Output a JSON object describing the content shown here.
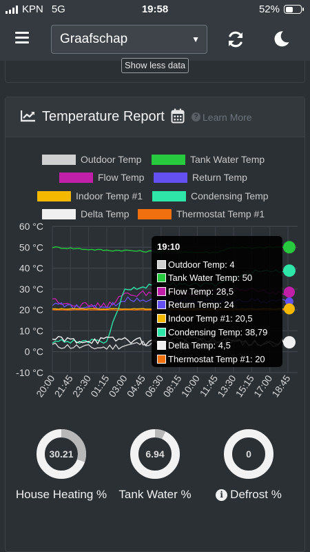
{
  "status_bar": {
    "carrier": "KPN",
    "network": "5G",
    "time": "19:58",
    "battery": "52%",
    "battery_level": 0.52
  },
  "navbar": {
    "menu_icon": "hamburger-icon",
    "location_select": {
      "value": "Graafschap"
    },
    "refresh_icon": "refresh-icon",
    "theme_icon": "moon-icon"
  },
  "show_less_label": "Show less data",
  "report": {
    "title": "Temperature Report",
    "learn_more": "Learn More",
    "icons": [
      "chart-line-icon",
      "calendar-icon",
      "question-circle-icon"
    ]
  },
  "colors": {
    "outdoor": "#d0d0d0",
    "tank_water": "#27c93f",
    "flow": "#c020a8",
    "return": "#6450f0",
    "indoor": "#f5b800",
    "condensing": "#2ee6a8",
    "delta": "#f0f0f0",
    "thermostat": "#f07010"
  },
  "chart_data": {
    "type": "line",
    "title": "",
    "xlabel": "",
    "ylabel": "",
    "ylim": [
      -10,
      60
    ],
    "yticks": [
      "60 °C",
      "50 °C",
      "40 °C",
      "30 °C",
      "20 °C",
      "10 °C",
      "0 °C",
      "-10 °C"
    ],
    "x": [
      "20:00",
      "21:45",
      "23:30",
      "01:15",
      "03:00",
      "04:45",
      "06:30",
      "08:15",
      "10:00",
      "11:45",
      "13:30",
      "15:15",
      "17:00",
      "18:45"
    ],
    "legend_position": "top",
    "grid": true,
    "series": [
      {
        "name": "Outdoor Temp",
        "values": [
          3,
          2.5,
          2,
          2,
          3,
          4,
          5,
          6,
          6,
          5,
          5,
          4,
          4,
          4
        ]
      },
      {
        "name": "Tank Water Temp",
        "values": [
          50,
          49.5,
          49,
          48.5,
          48.5,
          48,
          48,
          48,
          47.5,
          47.5,
          50,
          49.5,
          50,
          50
        ]
      },
      {
        "name": "Flow Temp",
        "values": [
          25,
          23,
          22,
          22,
          27,
          28,
          29,
          28,
          28,
          28,
          29,
          30,
          28.5,
          28.5
        ]
      },
      {
        "name": "Return Temp",
        "values": [
          23,
          21.5,
          21,
          21,
          25,
          25,
          25,
          24,
          24,
          24,
          24,
          25,
          24,
          24
        ]
      },
      {
        "name": "Indoor Temp #1",
        "values": [
          20.5,
          20.5,
          20.5,
          20.5,
          20.5,
          20.5,
          20.5,
          20.5,
          20.5,
          20.5,
          20.5,
          20.5,
          20.5,
          20.5
        ]
      },
      {
        "name": "Condensing Temp",
        "values": [
          5,
          5,
          5,
          5,
          30,
          31,
          33,
          32,
          32,
          32,
          35,
          38,
          38.79,
          38.79
        ]
      },
      {
        "name": "Delta Temp",
        "values": [
          6,
          5.5,
          5.5,
          5.5,
          6,
          5,
          4,
          4,
          4.5,
          5,
          5,
          4.5,
          4.5,
          4.5
        ]
      },
      {
        "name": "Thermostat Temp #1",
        "values": [
          20,
          20,
          20,
          20,
          20,
          20,
          20,
          20,
          20,
          20,
          20,
          20,
          20,
          20
        ]
      }
    ]
  },
  "tooltip": {
    "title": "19:10",
    "rows": [
      {
        "label": "Outdoor Temp: 4",
        "color": "#d0d0d0"
      },
      {
        "label": "Tank Water Temp: 50",
        "color": "#27c93f"
      },
      {
        "label": "Flow Temp: 28,5",
        "color": "#c020a8"
      },
      {
        "label": "Return Temp: 24",
        "color": "#6450f0"
      },
      {
        "label": "Indoor Temp #1: 20,5",
        "color": "#f5b800"
      },
      {
        "label": "Condensing Temp: 38,79",
        "color": "#2ee6a8"
      },
      {
        "label": "Delta Temp: 4,5",
        "color": "#f0f0f0"
      },
      {
        "label": "Thermostat Temp #1: 20",
        "color": "#f07010"
      }
    ]
  },
  "gauges": [
    {
      "value": "30.21",
      "fraction": 0.3021,
      "label": "House Heating %"
    },
    {
      "value": "6.94",
      "fraction": 0.0694,
      "label": "Tank Water %"
    },
    {
      "value": "0",
      "fraction": 0,
      "label": "Defrost %",
      "icon": "info-circle-icon"
    }
  ]
}
